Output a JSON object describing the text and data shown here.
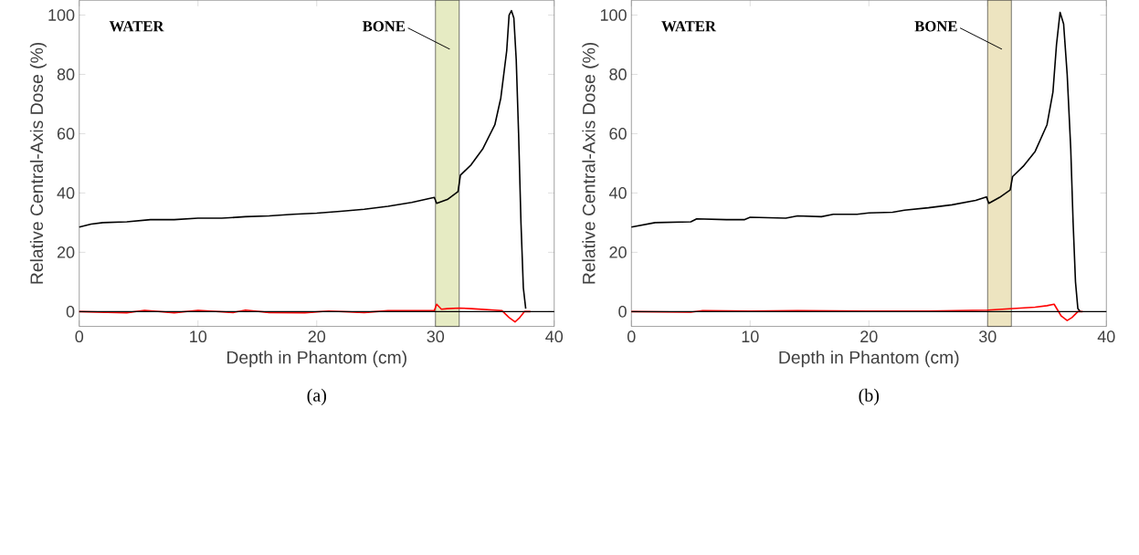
{
  "chart_data": [
    {
      "type": "line",
      "title": "(a)",
      "xlabel": "Depth in Phantom (cm)",
      "ylabel": "Relative Central-Axis Dose (%)",
      "xlim": [
        0,
        40
      ],
      "ylim": [
        -5,
        105
      ],
      "xticks": [
        0,
        10,
        20,
        30,
        40
      ],
      "yticks": [
        0,
        20,
        40,
        60,
        80,
        100
      ],
      "annotations": [
        "WATER"
      ],
      "bands": [
        {
          "axis": "x",
          "from": 30,
          "to": 32,
          "label": "BONE",
          "color": "#e6ebc3"
        }
      ],
      "ref_lines": [
        {
          "axis": "y",
          "value": 0,
          "color": "#000000"
        }
      ],
      "series": [
        {
          "color": "#000000",
          "x": [
            0,
            1,
            2,
            4,
            6,
            8,
            10,
            12,
            14,
            16,
            18,
            20,
            22,
            24,
            26,
            28,
            29.9,
            30.1,
            31,
            31.9,
            32.1,
            33,
            34,
            35,
            35.5,
            36,
            36.2,
            36.4,
            36.6,
            36.8,
            37,
            37.2,
            37.4,
            37.6
          ],
          "values": [
            28.5,
            29.5,
            30,
            30.3,
            31,
            31,
            31.5,
            31.5,
            32,
            32.3,
            32.8,
            33.2,
            33.8,
            34.5,
            35.5,
            36.8,
            38.5,
            36.5,
            37.8,
            40.5,
            46,
            49.5,
            55,
            63,
            72,
            88,
            100,
            101.5,
            99,
            85,
            60,
            30,
            8,
            1
          ]
        },
        {
          "color": "#ff0000",
          "x": [
            0,
            4,
            5.5,
            8,
            10,
            13,
            14,
            16,
            19,
            21,
            24,
            26,
            29.9,
            30.1,
            30.5,
            31,
            32,
            33,
            35,
            35.6,
            36.2,
            36.7,
            37.1,
            37.5,
            38
          ],
          "values": [
            0,
            -0.4,
            0.4,
            -0.4,
            0.4,
            -0.3,
            0.5,
            -0.3,
            -0.4,
            0.2,
            -0.3,
            0.3,
            0.3,
            2.5,
            0.8,
            1,
            1.2,
            1,
            0.5,
            0.3,
            -2,
            -3.5,
            -2,
            0,
            0
          ]
        }
      ]
    },
    {
      "type": "line",
      "title": "(b)",
      "xlabel": "Depth in Phantom (cm)",
      "ylabel": "Relative Central-Axis Dose (%)",
      "xlim": [
        0,
        40
      ],
      "ylim": [
        -5,
        105
      ],
      "xticks": [
        0,
        10,
        20,
        30,
        40
      ],
      "yticks": [
        0,
        20,
        40,
        60,
        80,
        100
      ],
      "annotations": [
        "WATER"
      ],
      "bands": [
        {
          "axis": "x",
          "from": 30,
          "to": 32,
          "label": "BONE",
          "color": "#ede4c0"
        }
      ],
      "ref_lines": [
        {
          "axis": "y",
          "value": 0,
          "color": "#000000"
        }
      ],
      "series": [
        {
          "color": "#000000",
          "x": [
            0,
            2,
            5,
            5.5,
            8,
            9.5,
            10,
            13,
            14,
            16,
            17,
            19,
            20,
            22,
            23,
            25,
            27,
            29,
            29.9,
            30.1,
            31,
            31.9,
            32.1,
            33,
            34,
            35,
            35.5,
            35.8,
            36.1,
            36.4,
            36.7,
            37,
            37.2,
            37.4,
            37.6,
            37.8
          ],
          "values": [
            28.5,
            30,
            30.3,
            31.3,
            31,
            31,
            31.8,
            31.5,
            32.3,
            32,
            32.8,
            32.8,
            33.3,
            33.5,
            34.2,
            35,
            36,
            37.5,
            38.7,
            36.5,
            38.5,
            41,
            45.5,
            49,
            54,
            63,
            74,
            90,
            100.9,
            97,
            80,
            55,
            30,
            10,
            1,
            0
          ]
        },
        {
          "color": "#ff0000",
          "x": [
            0,
            5,
            6,
            10,
            14,
            20,
            25,
            30,
            32,
            34,
            35,
            35.6,
            36.2,
            36.7,
            37.1,
            37.6,
            38
          ],
          "values": [
            0,
            -0.2,
            0.3,
            0.2,
            0.3,
            0.2,
            0.2,
            0.5,
            1,
            1.5,
            2,
            2.5,
            -1.5,
            -3,
            -2,
            0,
            0
          ]
        }
      ]
    }
  ]
}
